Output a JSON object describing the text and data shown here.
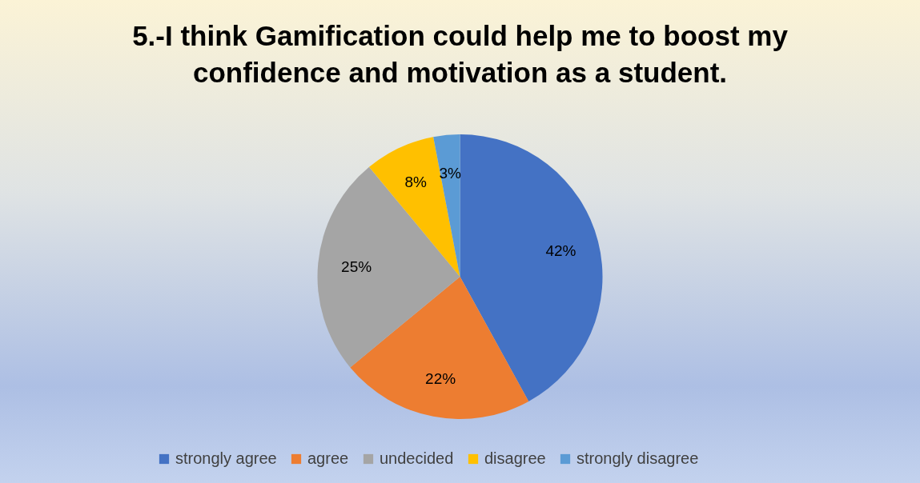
{
  "chart_data": {
    "type": "pie",
    "title": "5.-I think Gamification could help me to boost my confidence and motivation as a student.",
    "categories": [
      "strongly agree",
      "agree",
      "undecided",
      "disagree",
      "strongly disagree"
    ],
    "values": [
      42,
      22,
      25,
      8,
      3
    ],
    "colors": [
      "#4472c4",
      "#ed7d31",
      "#a5a5a5",
      "#ffc000",
      "#5b9bd5"
    ],
    "value_labels": [
      "42%",
      "22%",
      "25%",
      "8%",
      "3%"
    ],
    "legend": "bottom"
  }
}
